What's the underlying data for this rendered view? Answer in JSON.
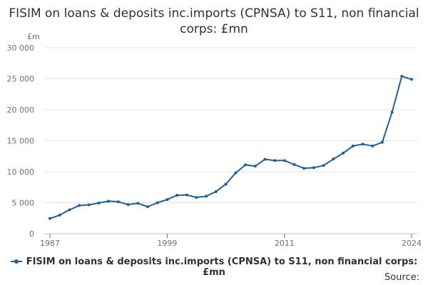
{
  "chart_data": {
    "type": "line",
    "title": "FISIM on loans & deposits inc.imports (CPNSA) to S11, non financial corps: £mn",
    "ylabel": "£m",
    "xlabel": "",
    "ylim": [
      0,
      30000
    ],
    "xlim": [
      1987,
      2024
    ],
    "grid": true,
    "legend_position": "bottom",
    "y_ticks": [
      0,
      5000,
      10000,
      15000,
      20000,
      25000,
      30000
    ],
    "y_tick_labels": [
      "0",
      "5 000",
      "10 000",
      "15 000",
      "20 000",
      "25 000",
      "30 000"
    ],
    "x_ticks": [
      1987,
      1999,
      2011,
      2024
    ],
    "x_tick_labels": [
      "1987",
      "1999",
      "2011",
      "2024"
    ],
    "series": [
      {
        "name": "FISIM on loans & deposits inc.imports (CPNSA) to S11, non financial corps: £mn",
        "color": "#206095",
        "x": [
          1987,
          1988,
          1989,
          1990,
          1991,
          1992,
          1993,
          1994,
          1995,
          1996,
          1997,
          1998,
          1999,
          2000,
          2001,
          2002,
          2003,
          2004,
          2005,
          2006,
          2007,
          2008,
          2009,
          2010,
          2011,
          2012,
          2013,
          2014,
          2015,
          2016,
          2017,
          2018,
          2019,
          2020,
          2021,
          2022,
          2023,
          2024
        ],
        "values": [
          2450,
          3000,
          3850,
          4550,
          4650,
          4950,
          5250,
          5150,
          4700,
          4900,
          4350,
          5000,
          5500,
          6200,
          6250,
          5850,
          6050,
          6800,
          8000,
          9800,
          11100,
          10900,
          12000,
          11800,
          11800,
          11150,
          10550,
          10650,
          11000,
          12050,
          13000,
          14150,
          14450,
          14150,
          14750,
          19600,
          25400,
          24900
        ]
      }
    ]
  },
  "legend": {
    "label": "FISIM on loans & deposits inc.imports (CPNSA) to S11, non financial corps: £mn"
  },
  "source_label": "Source:"
}
